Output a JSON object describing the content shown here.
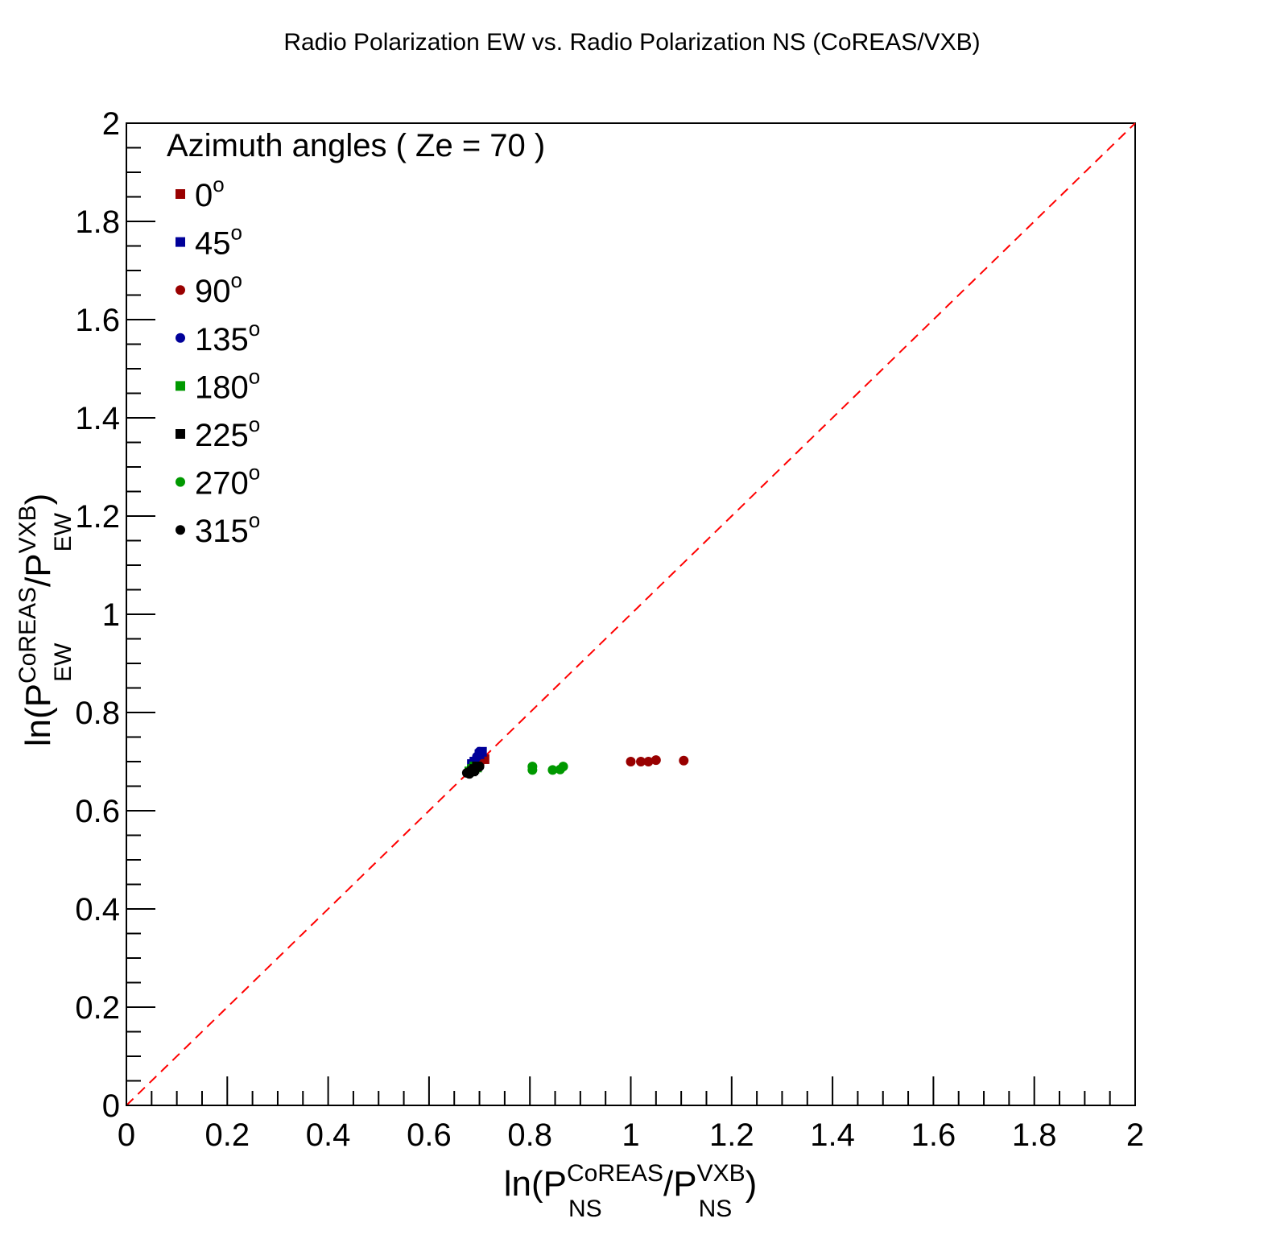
{
  "chart_data": {
    "type": "scatter",
    "title": "Radio Polarization EW vs. Radio Polarization NS (CoREAS/VXB)",
    "xlabel": {
      "prefix": "ln(P",
      "sup1": "CoREAS",
      "sub1": "NS",
      "mid": "/P",
      "sup2": "VXB",
      "sub2": "NS",
      "suffix": ")"
    },
    "ylabel": {
      "prefix": "ln(P",
      "sup1": "CoREAS",
      "sub1": "EW",
      "mid": "/P",
      "sup2": "VXB",
      "sub2": "EW",
      "suffix": ")"
    },
    "xlim": [
      0,
      2
    ],
    "ylim": [
      0,
      2
    ],
    "xticks": [
      "0",
      "0.2",
      "0.4",
      "0.6",
      "0.8",
      "1",
      "1.2",
      "1.4",
      "1.6",
      "1.8",
      "2"
    ],
    "yticks": [
      "0",
      "0.2",
      "0.4",
      "0.6",
      "0.8",
      "1",
      "1.2",
      "1.4",
      "1.6",
      "1.8",
      "2"
    ],
    "grid": false,
    "reference_line": {
      "style": "dashed",
      "color": "#ff0000",
      "from": [
        0,
        0
      ],
      "to": [
        2,
        2
      ]
    },
    "legend": {
      "position": "top-left",
      "title": "Azimuth angles ( Ze = 70 )",
      "degree_symbol": "o"
    },
    "series": [
      {
        "name": "0",
        "marker": "square",
        "color": "#990000",
        "points": [
          [
            0.71,
            0.705
          ],
          [
            0.7,
            0.7
          ],
          [
            0.695,
            0.695
          ],
          [
            0.69,
            0.69
          ]
        ]
      },
      {
        "name": "45",
        "marker": "square",
        "color": "#000099",
        "points": [
          [
            0.705,
            0.72
          ],
          [
            0.7,
            0.715
          ],
          [
            0.69,
            0.7
          ],
          [
            0.685,
            0.695
          ]
        ]
      },
      {
        "name": "90",
        "marker": "circle",
        "color": "#990000",
        "points": [
          [
            1.0,
            0.7
          ],
          [
            1.02,
            0.7
          ],
          [
            1.035,
            0.7
          ],
          [
            1.05,
            0.703
          ],
          [
            1.105,
            0.702
          ]
        ]
      },
      {
        "name": "135",
        "marker": "circle",
        "color": "#000099",
        "points": [
          [
            0.7,
            0.72
          ],
          [
            0.695,
            0.71
          ]
        ]
      },
      {
        "name": "180",
        "marker": "square",
        "color": "#009900",
        "points": [
          [
            0.69,
            0.69
          ],
          [
            0.685,
            0.685
          ],
          [
            0.68,
            0.68
          ],
          [
            0.695,
            0.688
          ]
        ]
      },
      {
        "name": "225",
        "marker": "square",
        "color": "#000000",
        "points": [
          [
            0.69,
            0.685
          ],
          [
            0.685,
            0.68
          ],
          [
            0.695,
            0.69
          ],
          [
            0.688,
            0.682
          ]
        ]
      },
      {
        "name": "270",
        "marker": "circle",
        "color": "#009900",
        "points": [
          [
            0.805,
            0.69
          ],
          [
            0.805,
            0.683
          ],
          [
            0.845,
            0.683
          ],
          [
            0.86,
            0.684
          ],
          [
            0.866,
            0.69
          ]
        ]
      },
      {
        "name": "315",
        "marker": "circle",
        "color": "#000000",
        "points": [
          [
            0.675,
            0.677
          ],
          [
            0.68,
            0.675
          ],
          [
            0.685,
            0.68
          ],
          [
            0.69,
            0.683
          ],
          [
            0.695,
            0.688
          ],
          [
            0.7,
            0.69
          ]
        ]
      }
    ]
  }
}
